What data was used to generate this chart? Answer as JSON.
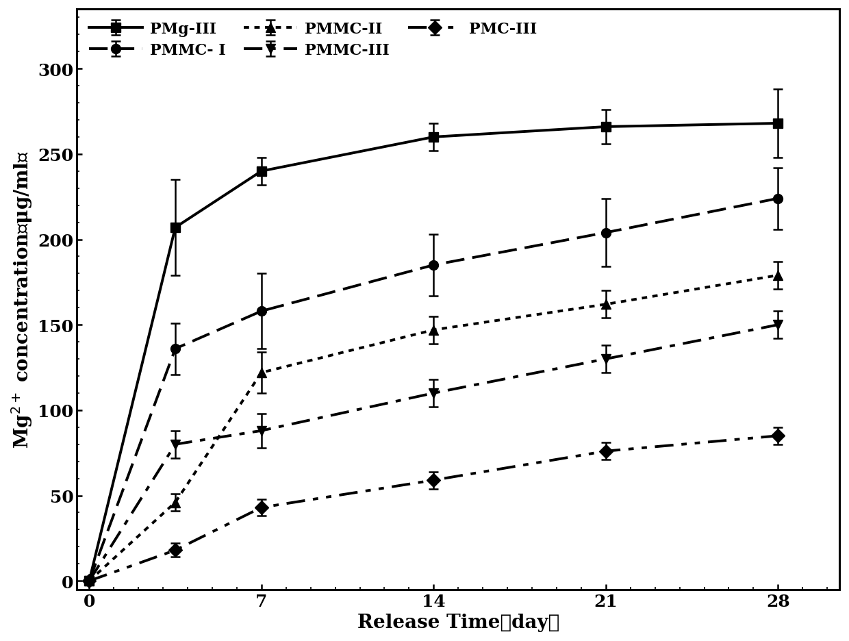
{
  "x": [
    0,
    3.5,
    7,
    14,
    21,
    28
  ],
  "series": [
    {
      "label": "PMg-III",
      "y": [
        0,
        207,
        240,
        260,
        266,
        268
      ],
      "yerr": [
        0,
        28,
        8,
        8,
        10,
        20
      ],
      "marker": "s",
      "markersize": 10,
      "linewidth": 2.8,
      "color": "#000000",
      "ls_key": "solid"
    },
    {
      "label": "PMMC- I",
      "y": [
        0,
        136,
        158,
        185,
        204,
        224
      ],
      "yerr": [
        0,
        15,
        22,
        18,
        20,
        18
      ],
      "marker": "o",
      "markersize": 10,
      "linewidth": 2.8,
      "color": "#000000",
      "ls_key": "long_dash"
    },
    {
      "label": "PMMC-II",
      "y": [
        0,
        46,
        122,
        147,
        162,
        179
      ],
      "yerr": [
        0,
        5,
        12,
        8,
        8,
        8
      ],
      "marker": "^",
      "markersize": 10,
      "linewidth": 2.8,
      "color": "#000000",
      "ls_key": "dense_dot"
    },
    {
      "label": "PMMC-III",
      "y": [
        0,
        80,
        88,
        110,
        130,
        150
      ],
      "yerr": [
        0,
        8,
        10,
        8,
        8,
        8
      ],
      "marker": "v",
      "markersize": 10,
      "linewidth": 2.8,
      "color": "#000000",
      "ls_key": "dash_dot"
    },
    {
      "label": "PMC-III",
      "y": [
        0,
        18,
        43,
        59,
        76,
        85
      ],
      "yerr": [
        0,
        4,
        5,
        5,
        5,
        5
      ],
      "marker": "D",
      "markersize": 10,
      "linewidth": 2.8,
      "color": "#000000",
      "ls_key": "dash_dot_dot"
    }
  ],
  "xlabel": "Release Time（day）",
  "ylabel": "Mg$^{2+}$ concentration（μg/ml）",
  "xlim": [
    -0.5,
    30.5
  ],
  "ylim": [
    -5,
    335
  ],
  "yticks": [
    0,
    50,
    100,
    150,
    200,
    250,
    300
  ],
  "xticks": [
    0,
    7,
    14,
    21,
    28
  ],
  "xticklabels": [
    "0",
    "7",
    "14",
    "21",
    "28"
  ],
  "figsize": [
    12.4,
    9.37
  ],
  "dpi": 100,
  "background_color": "#ffffff"
}
